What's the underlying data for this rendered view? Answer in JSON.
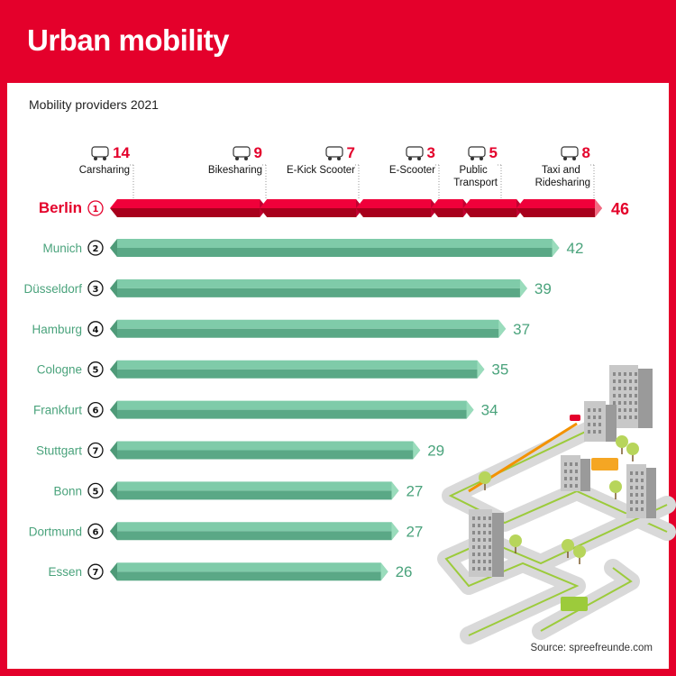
{
  "title": "Urban mobility",
  "subtitle": "Mobility providers 2021",
  "source": "Source: spreefreunde.com",
  "colors": {
    "brand": "#e4002b",
    "bar_green": "#7fcba9",
    "bar_green_dark": "#5aa886",
    "label_green": "#4aa37c"
  },
  "chart_data": {
    "type": "bar",
    "orientation": "horizontal",
    "categories": [
      "Berlin",
      "Munich",
      "Düsseldorf",
      "Hamburg",
      "Cologne",
      "Frankfurt",
      "Stuttgart",
      "Bonn",
      "Dortmund",
      "Essen"
    ],
    "ranks": [
      "1",
      "2",
      "3",
      "4",
      "5",
      "6",
      "7",
      "5",
      "6",
      "7"
    ],
    "values": [
      46,
      42,
      39,
      37,
      35,
      34,
      29,
      27,
      27,
      26
    ],
    "highlight": "Berlin",
    "berlin_breakdown": [
      {
        "name": "Carsharing",
        "value": 14,
        "icon": "car-icon"
      },
      {
        "name": "Bikesharing",
        "value": 9,
        "icon": "bicycle-icon"
      },
      {
        "name": "E-Kick Scooter",
        "value": 7,
        "icon": "kick-scooter-icon"
      },
      {
        "name": "E-Scooter",
        "value": 3,
        "icon": "moped-icon"
      },
      {
        "name": "Public Transport",
        "value": 5,
        "icon": "bus-icon"
      },
      {
        "name": "Taxi and Ridesharing",
        "value": 8,
        "icon": "taxi-icon"
      }
    ],
    "xlim": [
      0,
      46
    ]
  }
}
